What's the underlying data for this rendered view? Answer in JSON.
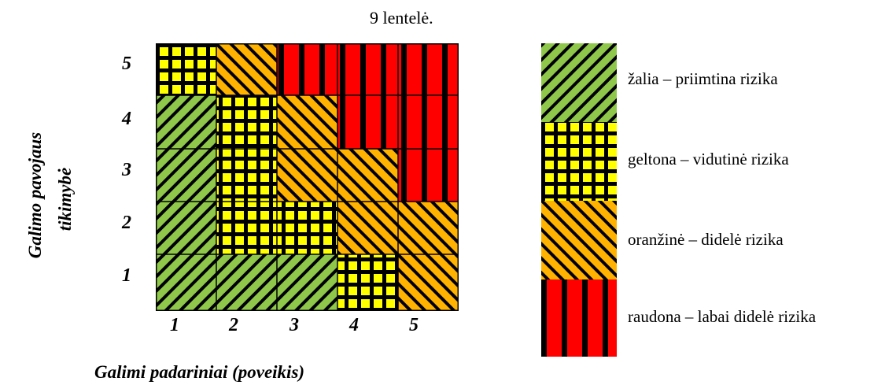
{
  "caption": "9 lentelė.",
  "y_axis": {
    "line1": "Galimo pavojaus",
    "line2": "tikimybė",
    "ticks": [
      "5",
      "4",
      "3",
      "2",
      "1"
    ]
  },
  "x_axis": {
    "title": "Galimi padariniai (poveikis)",
    "ticks": [
      "1",
      "2",
      "3",
      "4",
      "5"
    ]
  },
  "colors": {
    "green": "#8fc74a",
    "yellow": "#ffff00",
    "orange": "#ffb300",
    "red": "#ff0000",
    "stroke": "#000000"
  },
  "matrix": {
    "rows": [
      {
        "likelihood": "5",
        "cells": [
          "yellow",
          "orange",
          "red",
          "red",
          "red"
        ]
      },
      {
        "likelihood": "4",
        "cells": [
          "green",
          "yellow",
          "orange",
          "red",
          "red"
        ]
      },
      {
        "likelihood": "3",
        "cells": [
          "green",
          "yellow",
          "orange",
          "orange",
          "red"
        ]
      },
      {
        "likelihood": "2",
        "cells": [
          "green",
          "yellow",
          "yellow",
          "orange",
          "orange"
        ]
      },
      {
        "likelihood": "1",
        "cells": [
          "green",
          "green",
          "green",
          "yellow",
          "orange"
        ]
      }
    ]
  },
  "legend": [
    {
      "key": "green",
      "label": "žalia – priimtina rizika"
    },
    {
      "key": "yellow",
      "label": "geltona – vidutinė rizika"
    },
    {
      "key": "orange",
      "label": "oranžinė  – didelė  rizika"
    },
    {
      "key": "red",
      "label": "raudona – labai didelė rizika"
    }
  ]
}
